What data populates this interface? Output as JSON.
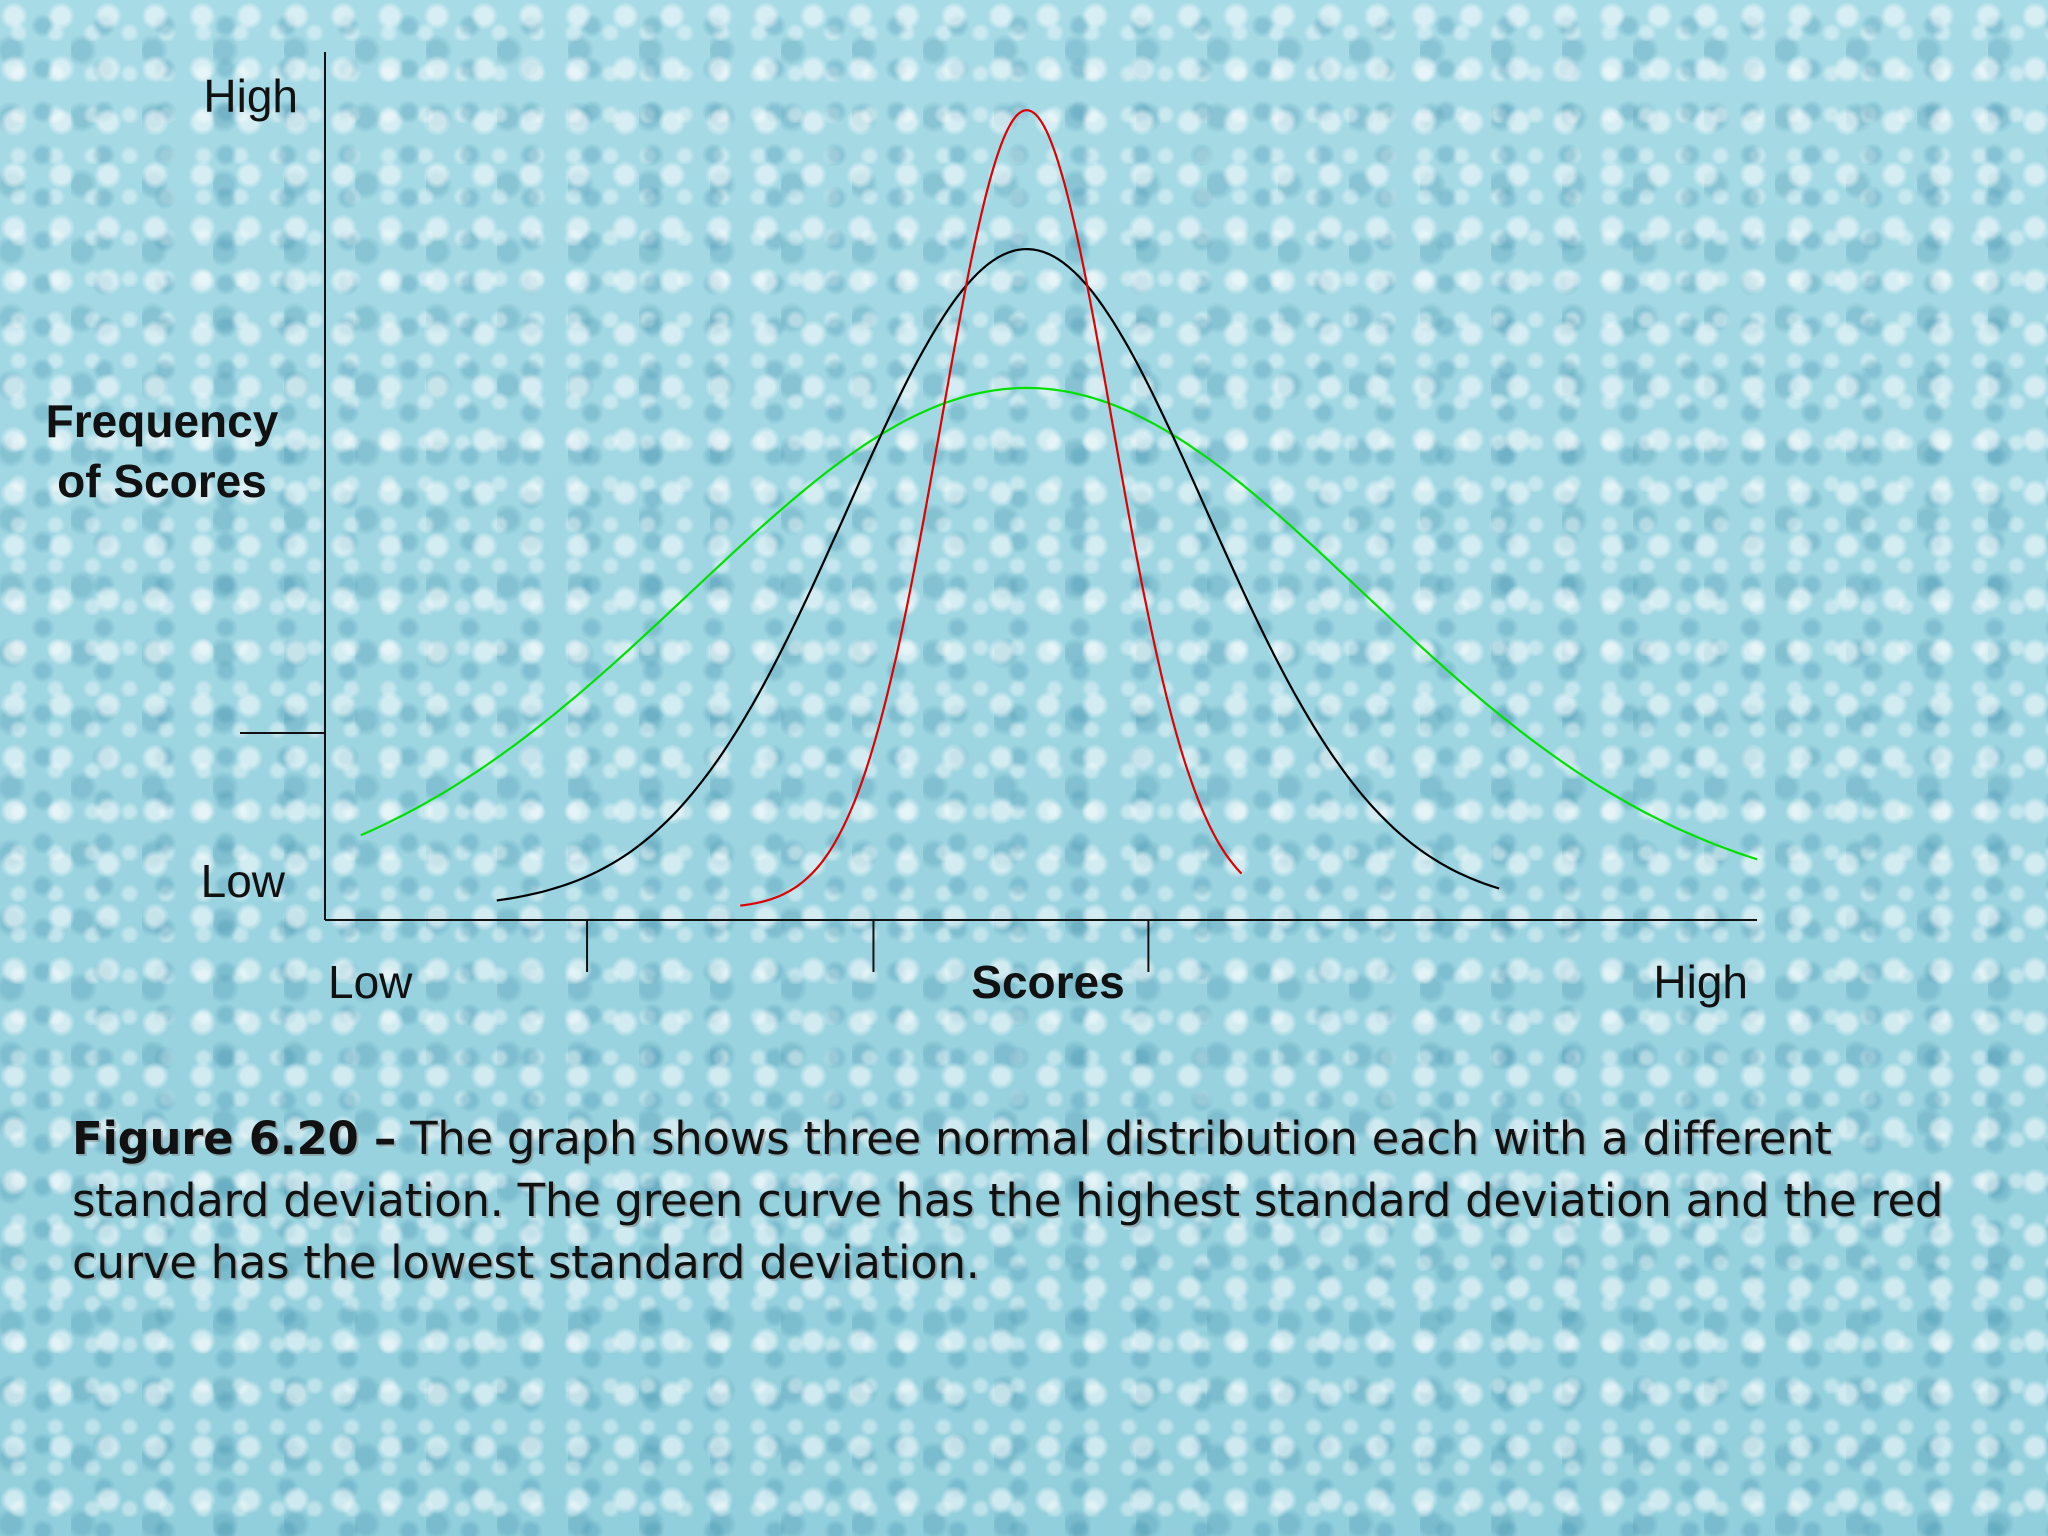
{
  "chart_data": {
    "type": "line",
    "xlabel": "Scores",
    "ylabel_lines": [
      "Frequency",
      "of Scores"
    ],
    "x_tick_low": "Low",
    "x_tick_high": "High",
    "y_tick_high": "High",
    "y_tick_low": "Low",
    "xlim": [
      0,
      1
    ],
    "ylim": [
      0,
      1
    ],
    "series": [
      {
        "color": "#00e000",
        "mean": 0.49,
        "sd": 0.235,
        "peak": 0.6,
        "x_range": [
          0.025,
          1.0
        ]
      },
      {
        "color": "#000000",
        "mean": 0.49,
        "sd": 0.125,
        "peak": 0.76,
        "x_range": [
          0.12,
          0.82
        ]
      },
      {
        "color": "#e00000",
        "mean": 0.49,
        "sd": 0.06,
        "peak": 0.92,
        "x_range": [
          0.29,
          0.64
        ]
      }
    ]
  },
  "caption": {
    "label": "Figure 6.20 –",
    "text": " The graph shows three normal distribution each with a different standard deviation.  The green curve has the highest standard deviation and the red curve has the lowest standard deviation."
  }
}
